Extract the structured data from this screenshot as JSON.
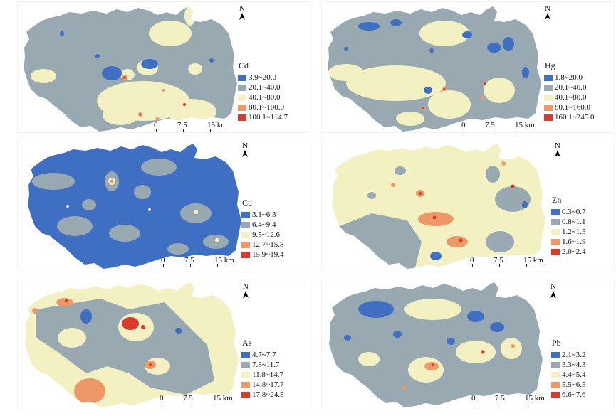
{
  "colors": {
    "c1": "#3f6fc2",
    "c2": "#98a9b2",
    "c3": "#f3f1c2",
    "c4": "#ee9868",
    "c5": "#d93a2a"
  },
  "scale": {
    "l0": "0",
    "l1": "7.5",
    "l2": "15 km"
  },
  "north": "N",
  "panels": [
    {
      "element": "Cd",
      "classes": [
        "3.9~20.0",
        "20.1~40.0",
        "40.1~80.0",
        "80.1~100.0",
        "100.1~114.7"
      ]
    },
    {
      "element": "Hg",
      "classes": [
        "1.8~20.0",
        "20.1~40.0",
        "40.1~80.0",
        "80.1~160.0",
        "160.1~245.0"
      ]
    },
    {
      "element": "Cu",
      "classes": [
        "3.1~6.3",
        "6.4~9.4",
        "9.5~12.6",
        "12.7~15.8",
        "15.9~19.4"
      ]
    },
    {
      "element": "Zn",
      "classes": [
        "0.3~0.7",
        "0.8~1.1",
        "1.2~1.5",
        "1.6~1.9",
        "2.0~2.4"
      ]
    },
    {
      "element": "As",
      "classes": [
        "4.7~7.7",
        "7.8~11.7",
        "11.8~14.7",
        "14.8~17.7",
        "17.8~24.5"
      ]
    },
    {
      "element": "Pb",
      "classes": [
        "2.1~3.2",
        "3.3~4.3",
        "4.4~5.4",
        "5.5~6.5",
        "6.6~7.6"
      ]
    }
  ]
}
